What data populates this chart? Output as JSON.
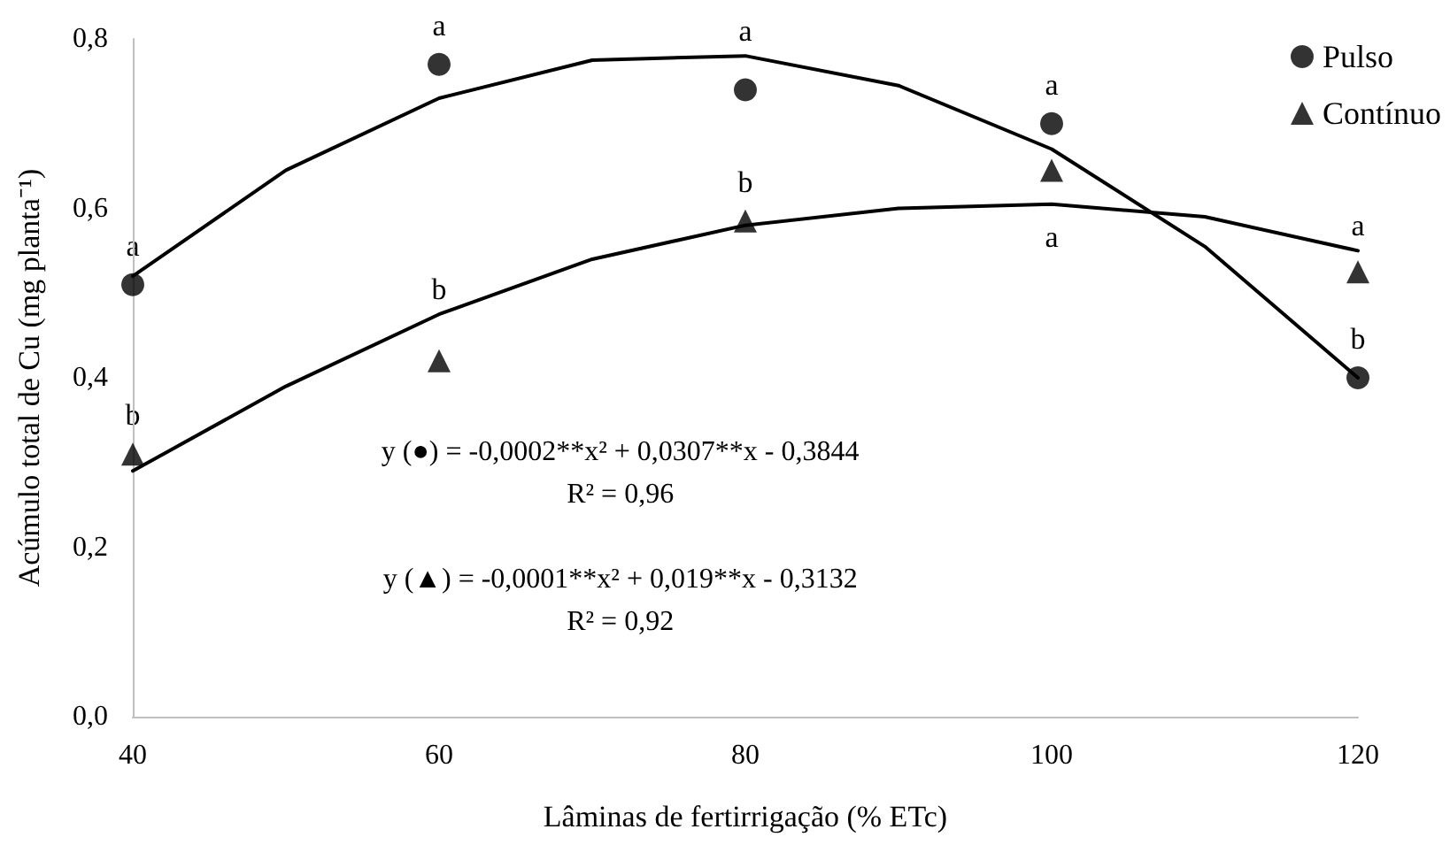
{
  "chart_data": {
    "type": "scatter",
    "xlabel": "Lâminas de fertirrigação (% ETc)",
    "ylabel": "Acúmulo total de Cu (mg planta⁻¹)",
    "x": [
      40,
      60,
      80,
      100,
      120
    ],
    "series": [
      {
        "name": "Pulso",
        "color": "#000000",
        "marker": "circle",
        "values": [
          0.51,
          0.77,
          0.74,
          0.7,
          0.4
        ]
      },
      {
        "name": "Contínuo",
        "color": "#000000",
        "marker": "triangle",
        "values": [
          0.31,
          0.42,
          0.585,
          0.645,
          0.525
        ]
      },
      {
        "type": "line",
        "color": "#000000",
        "marker": "none",
        "line_style": "solid",
        "x": [
          40,
          50,
          60,
          70,
          80,
          90,
          100,
          110,
          120
        ],
        "values": [
          0.52,
          0.645,
          0.73,
          0.775,
          0.78,
          0.745,
          0.67,
          0.555,
          0.4
        ]
      },
      {
        "type": "line",
        "color": "#000000",
        "marker": "none",
        "line_style": "solid",
        "x": [
          40,
          50,
          60,
          70,
          80,
          90,
          100,
          110,
          120
        ],
        "values": [
          0.29,
          0.39,
          0.475,
          0.54,
          0.58,
          0.6,
          0.605,
          0.59,
          0.55
        ]
      }
    ],
    "xlim": [
      40,
      120
    ],
    "xticks": [
      40,
      60,
      80,
      100,
      120
    ],
    "ylim": [
      0,
      0.8
    ],
    "yticks": [
      {
        "value": 0,
        "label": "0,0"
      },
      {
        "value": 0.2,
        "label": "0,2"
      },
      {
        "value": 0.4,
        "label": "0,4"
      },
      {
        "value": 0.6,
        "label": "0,6"
      },
      {
        "value": 0.8,
        "label": "0,8"
      }
    ],
    "grid": false,
    "legend": "top right",
    "annotations": [
      {
        "text": "a",
        "x": 40,
        "y": 0.51
      },
      {
        "text": "a",
        "x": 60,
        "y": 0.77
      },
      {
        "text": "a",
        "x": 80,
        "y": 0.74
      },
      {
        "text": "a",
        "x": 100,
        "y": 0.7
      },
      {
        "text": "b",
        "x": 120,
        "y": 0.4
      },
      {
        "text": "b",
        "x": 40,
        "y": 0.31
      },
      {
        "text": "b",
        "x": 60,
        "y": 0.42
      },
      {
        "text": "b",
        "x": 80,
        "y": 0.585
      },
      {
        "text": "a",
        "x": 100,
        "y": 0.645
      },
      {
        "text": "a",
        "x": 120,
        "y": 0.525
      },
      "y (●) = -0,0002**x² + 0,0307**x - 0,3844",
      "R² = 0,96",
      "y (▲) = -0,0001**x² + 0,019**x - 0,3132",
      "R² = 0,92"
    ]
  }
}
